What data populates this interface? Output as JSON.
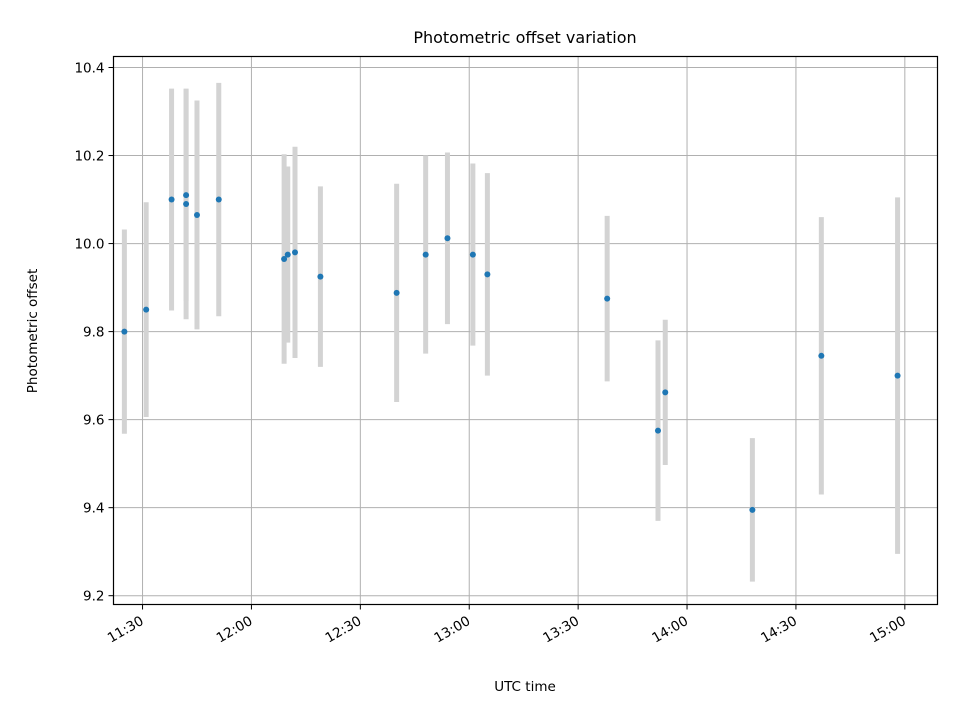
{
  "chart_data": {
    "type": "scatter",
    "title": "Photometric offset variation",
    "xlabel": "UTC time",
    "ylabel": "Photometric offset",
    "x_unit": "UTC time (HH:MM)",
    "xlim": [
      "11:22",
      "15:09"
    ],
    "ylim": [
      9.18,
      10.425
    ],
    "grid": true,
    "x_ticks": [
      "11:30",
      "12:00",
      "12:30",
      "13:00",
      "13:30",
      "14:00",
      "14:30",
      "15:00"
    ],
    "y_ticks": [
      "9.2",
      "9.4",
      "9.6",
      "9.8",
      "10.0",
      "10.2",
      "10.4"
    ],
    "colors": {
      "point": "#1f77b4",
      "errorbar": "#d3d3d3",
      "grid": "#b0b0b0"
    },
    "series": [
      {
        "points": [
          {
            "x": "11:25",
            "y": 9.8,
            "err": 0.232
          },
          {
            "x": "11:31",
            "y": 9.85,
            "err": 0.244
          },
          {
            "x": "11:38",
            "y": 10.1,
            "err": 0.252
          },
          {
            "x": "11:42",
            "y": 10.11,
            "err": 0.24
          },
          {
            "x": "11:42",
            "y": 10.09,
            "err": 0.262
          },
          {
            "x": "11:45",
            "y": 10.065,
            "err": 0.26
          },
          {
            "x": "11:51",
            "y": 10.1,
            "err": 0.265
          },
          {
            "x": "12:09",
            "y": 9.965,
            "err": 0.238
          },
          {
            "x": "12:10",
            "y": 9.975,
            "err": 0.2
          },
          {
            "x": "12:12",
            "y": 9.98,
            "err": 0.24
          },
          {
            "x": "12:19",
            "y": 9.925,
            "err": 0.205
          },
          {
            "x": "12:40",
            "y": 9.888,
            "err": 0.248
          },
          {
            "x": "12:48",
            "y": 9.975,
            "err": 0.225
          },
          {
            "x": "12:54",
            "y": 10.012,
            "err": 0.195
          },
          {
            "x": "13:01",
            "y": 9.975,
            "err": 0.207
          },
          {
            "x": "13:05",
            "y": 9.93,
            "err": 0.23
          },
          {
            "x": "13:38",
            "y": 9.875,
            "err": 0.188
          },
          {
            "x": "13:52",
            "y": 9.575,
            "err": 0.205
          },
          {
            "x": "13:54",
            "y": 9.662,
            "err": 0.165
          },
          {
            "x": "14:18",
            "y": 9.395,
            "err": 0.163
          },
          {
            "x": "14:37",
            "y": 9.745,
            "err": 0.315
          },
          {
            "x": "14:58",
            "y": 9.7,
            "err": 0.405
          }
        ]
      }
    ]
  }
}
